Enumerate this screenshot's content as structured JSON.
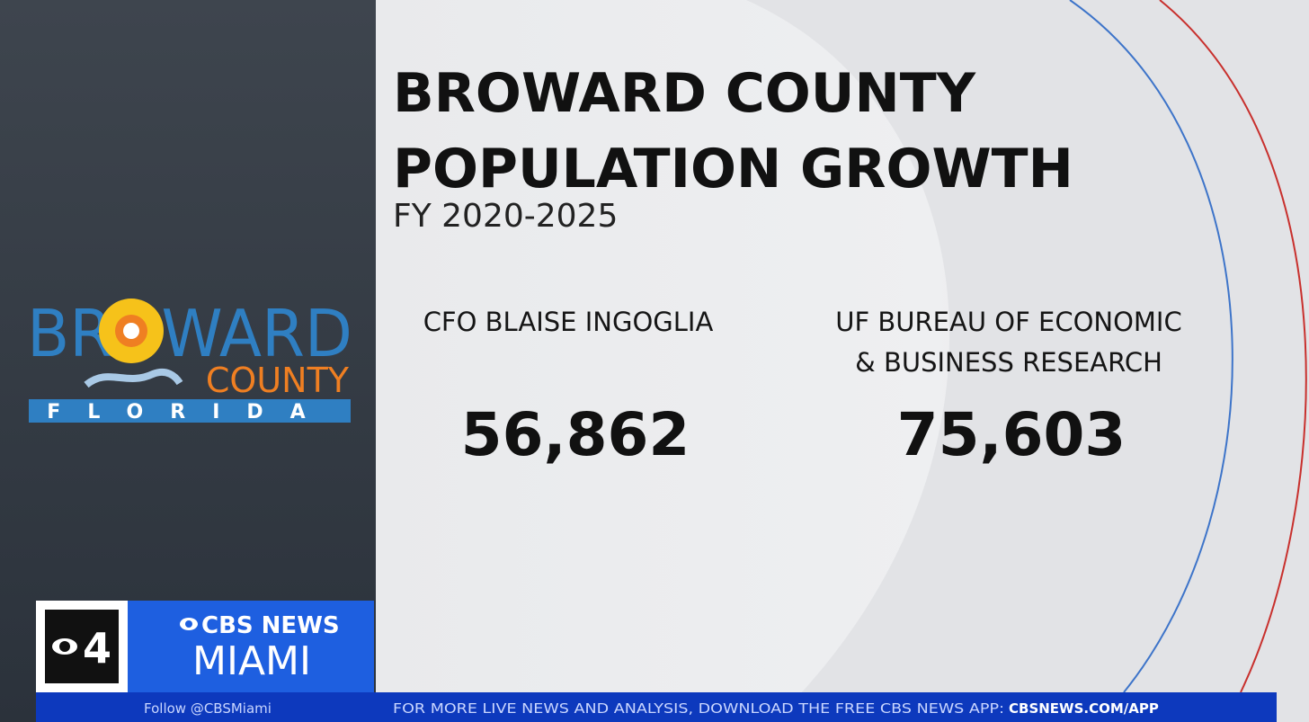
{
  "graphic": {
    "title_lines": [
      "BROWARD COUNTY",
      "POPULATION GROWTH"
    ],
    "subtitle": "FY 2020-2025",
    "sources": [
      {
        "name_lines": [
          "CFO BLAISE INGOGLIA"
        ],
        "figure": "56,862"
      },
      {
        "name_lines": [
          "UF BUREAU OF ECONOMIC",
          "& BUSINESS RESEARCH"
        ],
        "figure": "75,603"
      }
    ]
  },
  "logo": {
    "line1": "BROWARD",
    "line2": "COUNTY",
    "line3": "FLORIDA"
  },
  "station": {
    "channel": "4",
    "network": "CBS NEWS",
    "city": "MIAMI"
  },
  "ticker": {
    "follow": "Follow @CBSMiami",
    "message": "FOR MORE LIVE NEWS AND ANALYSIS, DOWNLOAD THE FREE CBS NEWS APP:",
    "url": "CBSNEWS.COM/APP"
  }
}
